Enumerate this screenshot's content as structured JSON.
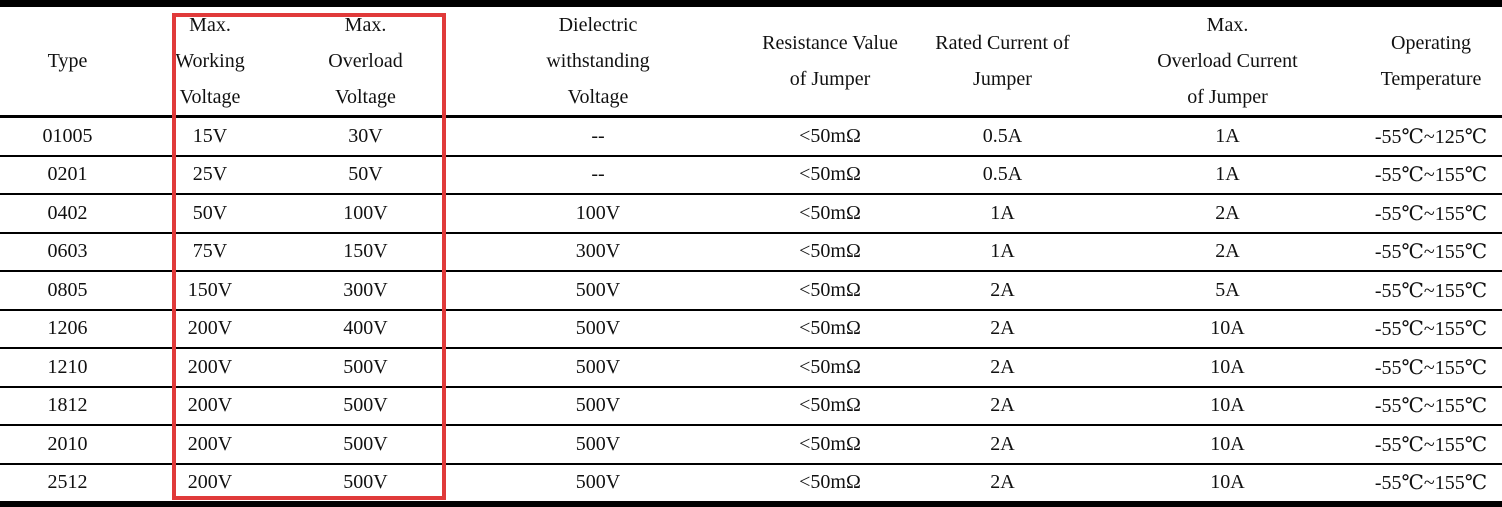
{
  "table": {
    "columns": [
      {
        "id": "type",
        "label_lines": [
          "Type"
        ]
      },
      {
        "id": "max-working-voltage",
        "label_lines": [
          "Max.",
          "Working",
          "Voltage"
        ]
      },
      {
        "id": "max-overload-voltage",
        "label_lines": [
          "Max.",
          "Overload",
          "Voltage"
        ]
      },
      {
        "id": "dielectric-withstanding-voltage",
        "label_lines": [
          "Dielectric",
          "withstanding",
          "Voltage"
        ]
      },
      {
        "id": "resistance-value-of-jumper",
        "label_lines": [
          "Resistance Value",
          "of Jumper"
        ]
      },
      {
        "id": "rated-current-of-jumper",
        "label_lines": [
          "Rated Current of",
          "Jumper"
        ]
      },
      {
        "id": "max-overload-current-of-jumper",
        "label_lines": [
          "Max.",
          "Overload Current",
          "of Jumper"
        ]
      },
      {
        "id": "operating-temperature",
        "label_lines": [
          "Operating",
          "Temperature"
        ]
      }
    ],
    "rows": [
      {
        "cells": [
          "01005",
          "15V",
          "30V",
          "--",
          "<50mΩ",
          "0.5A",
          "1A",
          "-55℃~125℃"
        ]
      },
      {
        "cells": [
          "0201",
          "25V",
          "50V",
          "--",
          "<50mΩ",
          "0.5A",
          "1A",
          "-55℃~155℃"
        ]
      },
      {
        "cells": [
          "0402",
          "50V",
          "100V",
          "100V",
          "<50mΩ",
          "1A",
          "2A",
          "-55℃~155℃"
        ]
      },
      {
        "cells": [
          "0603",
          "75V",
          "150V",
          "300V",
          "<50mΩ",
          "1A",
          "2A",
          "-55℃~155℃"
        ]
      },
      {
        "cells": [
          "0805",
          "150V",
          "300V",
          "500V",
          "<50mΩ",
          "2A",
          "5A",
          "-55℃~155℃"
        ]
      },
      {
        "cells": [
          "1206",
          "200V",
          "400V",
          "500V",
          "<50mΩ",
          "2A",
          "10A",
          "-55℃~155℃"
        ]
      },
      {
        "cells": [
          "1210",
          "200V",
          "500V",
          "500V",
          "<50mΩ",
          "2A",
          "10A",
          "-55℃~155℃"
        ]
      },
      {
        "cells": [
          "1812",
          "200V",
          "500V",
          "500V",
          "<50mΩ",
          "2A",
          "10A",
          "-55℃~155℃"
        ]
      },
      {
        "cells": [
          "2010",
          "200V",
          "500V",
          "500V",
          "<50mΩ",
          "2A",
          "10A",
          "-55℃~155℃"
        ]
      },
      {
        "cells": [
          "2512",
          "200V",
          "500V",
          "500V",
          "<50mΩ",
          "2A",
          "10A",
          "-55℃~155℃"
        ]
      }
    ]
  },
  "annotation": {
    "type": "highlight-box",
    "color": "#e03a3a",
    "highlighted_columns": [
      "max-working-voltage",
      "max-overload-voltage"
    ]
  }
}
